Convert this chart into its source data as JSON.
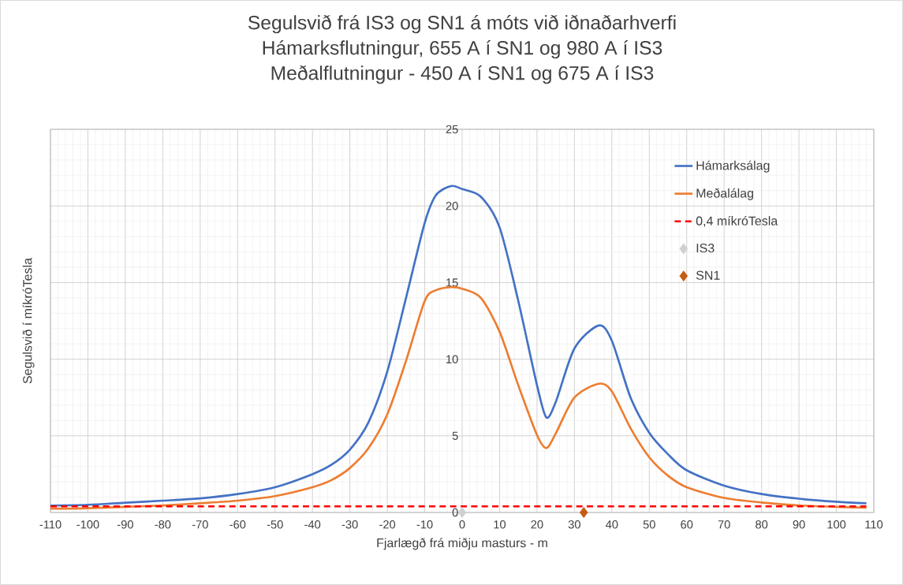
{
  "chart_data": {
    "type": "line",
    "title": "Segulsvið frá IS3 og SN1 á móts við iðnaðarhverfi",
    "subtitle": "Hámarksflutningur, 655 A í SN1 og 980 A í IS3\nMeðalflutningur - 450 A í SN1 og 675 A í IS3",
    "xlabel": "Fjarlægð frá miðju masturs - m",
    "ylabel": "Segulsvið í míkróTesla",
    "xlim": [
      -110,
      110
    ],
    "ylim": [
      0,
      25
    ],
    "xticks": [
      -110,
      -100,
      -90,
      -80,
      -70,
      -60,
      -50,
      -40,
      -30,
      -20,
      -10,
      0,
      10,
      20,
      30,
      40,
      50,
      60,
      70,
      80,
      90,
      100,
      110
    ],
    "yticks": [
      0,
      5,
      10,
      15,
      20,
      25
    ],
    "grid": true,
    "legend": "top right",
    "series": [
      {
        "name": "Hámarksálag",
        "color": "#4472c4",
        "x": [
          -110,
          -100,
          -90,
          -80,
          -70,
          -60,
          -50,
          -40,
          -35,
          -30,
          -25,
          -20,
          -15,
          -10,
          -7,
          -3,
          0,
          5,
          10,
          15,
          20,
          22.5,
          25,
          30,
          36.5,
          40,
          45,
          50,
          55,
          60,
          70,
          80,
          90,
          100,
          108
        ],
        "values": [
          0.45,
          0.5,
          0.64,
          0.77,
          0.92,
          1.2,
          1.65,
          2.5,
          3.1,
          4.1,
          5.9,
          9.2,
          14.0,
          18.9,
          20.7,
          21.3,
          21.1,
          20.6,
          18.6,
          13.8,
          8.3,
          6.2,
          7.2,
          10.7,
          12.2,
          11.2,
          7.5,
          5.2,
          3.8,
          2.75,
          1.75,
          1.2,
          0.9,
          0.7,
          0.6
        ]
      },
      {
        "name": "Meðalálag",
        "color": "#ed7d31",
        "x": [
          -110,
          -100,
          -90,
          -80,
          -70,
          -60,
          -50,
          -40,
          -35,
          -30,
          -25,
          -20,
          -15,
          -10,
          -7,
          -3,
          0,
          5,
          10,
          15,
          20,
          22.5,
          25,
          30,
          36.5,
          40,
          45,
          50,
          55,
          60,
          70,
          80,
          90,
          100,
          108
        ],
        "values": [
          0.25,
          0.28,
          0.37,
          0.46,
          0.6,
          0.77,
          1.07,
          1.65,
          2.1,
          2.9,
          4.2,
          6.4,
          9.9,
          13.8,
          14.5,
          14.7,
          14.6,
          14.0,
          11.8,
          8.3,
          5.05,
          4.2,
          5.15,
          7.5,
          8.4,
          7.9,
          5.5,
          3.6,
          2.4,
          1.65,
          0.95,
          0.65,
          0.46,
          0.37,
          0.31
        ]
      },
      {
        "name": "0,4 míkróTesla",
        "color": "#ff0000",
        "line_style": "dashed",
        "x": [
          -110,
          108
        ],
        "values": [
          0.4,
          0.4
        ]
      },
      {
        "name": "IS3",
        "type": "scatter",
        "marker": "diamond",
        "color": "#d0d0d0",
        "x": [
          0
        ],
        "values": [
          0
        ]
      },
      {
        "name": "SN1",
        "type": "scatter",
        "marker": "diamond",
        "color": "#c55a11",
        "x": [
          32.5
        ],
        "values": [
          0
        ]
      }
    ]
  }
}
